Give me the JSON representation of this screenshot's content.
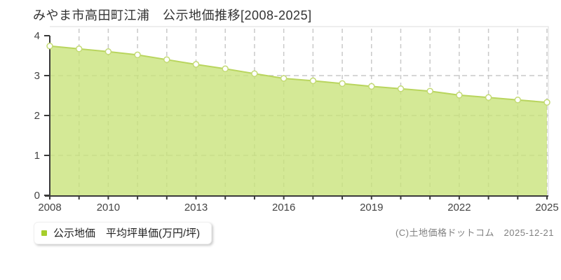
{
  "title": "みやま市高田町江浦　公示地価推移[2008-2025]",
  "legend": {
    "label": "公示地価　平均坪単価(万円/坪)"
  },
  "footer": {
    "copyright": "(C)土地価格ドットコム　2025-12-21"
  },
  "chart_data": {
    "type": "area",
    "title": "みやま市高田町江浦 公示地価推移[2008-2025]",
    "x": [
      2008,
      2009,
      2010,
      2011,
      2012,
      2013,
      2014,
      2015,
      2016,
      2017,
      2018,
      2019,
      2020,
      2021,
      2022,
      2023,
      2024,
      2025
    ],
    "series": [
      {
        "name": "公示地価 平均坪単価(万円/坪)",
        "values": [
          3.74,
          3.67,
          3.6,
          3.52,
          3.4,
          3.28,
          3.17,
          3.05,
          2.93,
          2.87,
          2.8,
          2.73,
          2.67,
          2.61,
          2.51,
          2.45,
          2.39,
          2.33
        ]
      }
    ],
    "xlabel": "",
    "ylabel": "万円/坪",
    "ylim": [
      0,
      4
    ],
    "y_ticks": [
      0,
      1,
      2,
      3,
      4
    ],
    "x_tick_years": [
      2008,
      2010,
      2013,
      2016,
      2019,
      2022,
      2025
    ],
    "grid": true,
    "legend_position": "bottom-left",
    "colors": {
      "area_fill": "#c8e378",
      "area_fill_opacity": 0.78,
      "line": "#b9d55e",
      "marker_fill": "#ffffff",
      "marker_stroke": "#c3da74",
      "legend_marker": "#a6ce2c",
      "grid": "#c9c9c9",
      "axis": "#3a3a3a",
      "frame": "#dddddd"
    }
  }
}
